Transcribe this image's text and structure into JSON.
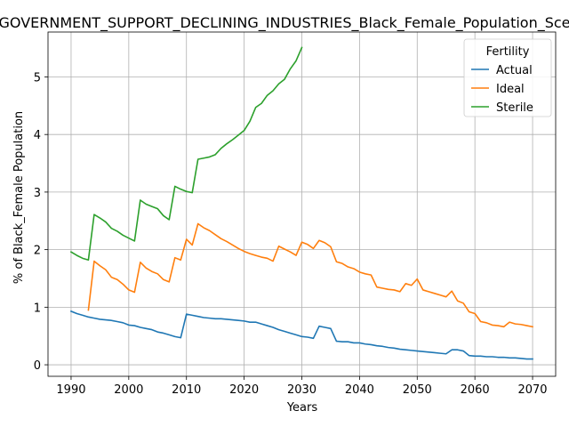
{
  "chart_data": {
    "type": "line",
    "title": "GOVERNMENT_SUPPORT_DECLINING_INDUSTRIES_Black_Female_Population_Sce",
    "xlabel": "Years",
    "ylabel": "% of Black_Female Population",
    "xlim": [
      1986,
      2074
    ],
    "ylim": [
      -0.2,
      5.78
    ],
    "x_ticks": [
      1990,
      2000,
      2010,
      2020,
      2030,
      2040,
      2050,
      2060,
      2070
    ],
    "y_ticks": [
      0,
      1,
      2,
      3,
      4,
      5
    ],
    "grid": true,
    "legend": {
      "title": "Fertility",
      "position": "top-right"
    },
    "series": [
      {
        "name": "Actual",
        "color": "#1f77b4",
        "x": [
          1990,
          1991,
          1992,
          1993,
          1994,
          1995,
          1996,
          1997,
          1998,
          1999,
          2000,
          2001,
          2002,
          2003,
          2004,
          2005,
          2006,
          2007,
          2008,
          2009,
          2010,
          2011,
          2012,
          2013,
          2014,
          2015,
          2016,
          2017,
          2018,
          2019,
          2020,
          2021,
          2022,
          2023,
          2024,
          2025,
          2026,
          2027,
          2028,
          2029,
          2030,
          2031,
          2032,
          2033,
          2034,
          2035,
          2036,
          2037,
          2038,
          2039,
          2040,
          2041,
          2042,
          2043,
          2044,
          2045,
          2046,
          2047,
          2048,
          2049,
          2050,
          2051,
          2052,
          2053,
          2054,
          2055,
          2056,
          2057,
          2058,
          2059,
          2060,
          2061,
          2062,
          2063,
          2064,
          2065,
          2066,
          2067,
          2068,
          2069,
          2070
        ],
        "values": [
          0.93,
          0.89,
          0.86,
          0.83,
          0.81,
          0.79,
          0.78,
          0.77,
          0.75,
          0.73,
          0.69,
          0.68,
          0.65,
          0.63,
          0.61,
          0.57,
          0.55,
          0.52,
          0.49,
          0.47,
          0.88,
          0.86,
          0.84,
          0.82,
          0.81,
          0.8,
          0.8,
          0.79,
          0.78,
          0.77,
          0.76,
          0.74,
          0.74,
          0.71,
          0.68,
          0.65,
          0.61,
          0.58,
          0.55,
          0.52,
          0.49,
          0.48,
          0.46,
          0.67,
          0.65,
          0.63,
          0.41,
          0.4,
          0.4,
          0.38,
          0.38,
          0.36,
          0.35,
          0.33,
          0.32,
          0.3,
          0.29,
          0.27,
          0.26,
          0.25,
          0.24,
          0.23,
          0.22,
          0.21,
          0.2,
          0.19,
          0.26,
          0.26,
          0.24,
          0.16,
          0.15,
          0.15,
          0.14,
          0.14,
          0.13,
          0.13,
          0.12,
          0.12,
          0.11,
          0.1,
          0.1
        ]
      },
      {
        "name": "Ideal",
        "color": "#ff7f0e",
        "x": [
          1993,
          1994,
          1995,
          1996,
          1997,
          1998,
          1999,
          2000,
          2001,
          2002,
          2003,
          2004,
          2005,
          2006,
          2007,
          2008,
          2009,
          2010,
          2011,
          2012,
          2013,
          2014,
          2015,
          2016,
          2017,
          2018,
          2019,
          2020,
          2021,
          2022,
          2023,
          2024,
          2025,
          2026,
          2027,
          2028,
          2029,
          2030,
          2031,
          2032,
          2033,
          2034,
          2035,
          2036,
          2037,
          2038,
          2039,
          2040,
          2041,
          2042,
          2043,
          2044,
          2045,
          2046,
          2047,
          2048,
          2049,
          2050,
          2051,
          2052,
          2053,
          2054,
          2055,
          2056,
          2057,
          2058,
          2059,
          2060,
          2061,
          2062,
          2063,
          2064,
          2065,
          2066,
          2067,
          2068,
          2069,
          2070
        ],
        "values": [
          0.95,
          1.8,
          1.72,
          1.65,
          1.52,
          1.48,
          1.4,
          1.3,
          1.26,
          1.78,
          1.68,
          1.62,
          1.58,
          1.48,
          1.44,
          1.86,
          1.82,
          2.18,
          2.08,
          2.45,
          2.38,
          2.33,
          2.26,
          2.19,
          2.14,
          2.08,
          2.02,
          1.97,
          1.93,
          1.9,
          1.87,
          1.85,
          1.8,
          2.06,
          2.01,
          1.96,
          1.9,
          2.13,
          2.09,
          2.02,
          2.16,
          2.12,
          2.05,
          1.79,
          1.76,
          1.7,
          1.67,
          1.61,
          1.58,
          1.56,
          1.35,
          1.33,
          1.31,
          1.3,
          1.27,
          1.41,
          1.38,
          1.49,
          1.3,
          1.27,
          1.24,
          1.21,
          1.18,
          1.28,
          1.11,
          1.07,
          0.92,
          0.89,
          0.75,
          0.73,
          0.69,
          0.68,
          0.66,
          0.74,
          0.71,
          0.7,
          0.68,
          0.66
        ]
      },
      {
        "name": "Sterile",
        "color": "#2ca02c",
        "x": [
          1990,
          1991,
          1992,
          1993,
          1994,
          1995,
          1996,
          1997,
          1998,
          1999,
          2000,
          2001,
          2002,
          2003,
          2004,
          2005,
          2006,
          2007,
          2008,
          2009,
          2010,
          2011,
          2012,
          2013,
          2014,
          2015,
          2016,
          2017,
          2018,
          2019,
          2020,
          2021,
          2022,
          2023,
          2024,
          2025,
          2026,
          2027,
          2028,
          2029,
          2030
        ],
        "values": [
          1.96,
          1.9,
          1.85,
          1.82,
          2.61,
          2.55,
          2.48,
          2.37,
          2.32,
          2.25,
          2.2,
          2.15,
          2.86,
          2.79,
          2.75,
          2.71,
          2.59,
          2.52,
          3.1,
          3.05,
          3.01,
          2.99,
          3.57,
          3.59,
          3.61,
          3.65,
          3.76,
          3.84,
          3.91,
          3.99,
          4.07,
          4.23,
          4.47,
          4.54,
          4.68,
          4.76,
          4.88,
          4.96,
          5.14,
          5.28,
          5.51
        ]
      }
    ]
  }
}
